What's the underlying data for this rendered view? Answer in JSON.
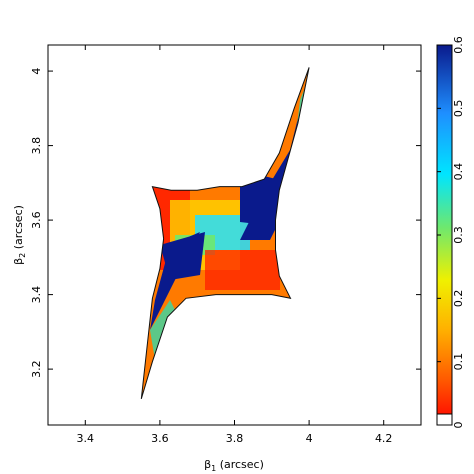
{
  "chart_data": {
    "type": "heatmap",
    "title": "",
    "xlabel": {
      "symbol": "β",
      "sub": "1",
      "unit": " (arcsec)"
    },
    "ylabel": {
      "symbol": "β",
      "sub": "2",
      "unit": " (arcsec)"
    },
    "xlim": [
      3.3,
      4.3
    ],
    "ylim": [
      3.05,
      4.07
    ],
    "xticks": [
      3.4,
      3.6,
      3.8,
      4.0,
      4.2
    ],
    "xtick_labels": [
      "3.4",
      "3.6",
      "3.8",
      "4",
      "4.2"
    ],
    "yticks": [
      3.2,
      3.4,
      3.6,
      3.8,
      4.0
    ],
    "ytick_labels": [
      "3.2",
      "3.4",
      "3.6",
      "3.8",
      "4"
    ],
    "grid": false,
    "colorbar": {
      "range": [
        0,
        0.6
      ],
      "ticks": [
        0,
        0.1,
        0.2,
        0.3,
        0.4,
        0.5,
        0.6
      ],
      "tick_labels": [
        "0",
        "0.1",
        "0.2",
        "0.3",
        "0.4",
        "0.5",
        "0.6"
      ],
      "colors": [
        "#ff0000",
        "#ff8c00",
        "#ffff00",
        "#6ee86e",
        "#00e5ff",
        "#1e8fff",
        "#0a1a8c"
      ]
    },
    "caustic_outline": [
      [
        4.0,
        4.01
      ],
      [
        3.96,
        3.9
      ],
      [
        3.92,
        3.78
      ],
      [
        3.88,
        3.71
      ],
      [
        3.82,
        3.69
      ],
      [
        3.76,
        3.69
      ],
      [
        3.7,
        3.68
      ],
      [
        3.63,
        3.68
      ],
      [
        3.58,
        3.69
      ],
      [
        3.6,
        3.63
      ],
      [
        3.61,
        3.55
      ],
      [
        3.6,
        3.47
      ],
      [
        3.58,
        3.39
      ],
      [
        3.55,
        3.12
      ],
      [
        3.58,
        3.22
      ],
      [
        3.62,
        3.34
      ],
      [
        3.67,
        3.39
      ],
      [
        3.75,
        3.4
      ],
      [
        3.83,
        3.4
      ],
      [
        3.9,
        3.4
      ],
      [
        3.95,
        3.39
      ],
      [
        3.92,
        3.45
      ],
      [
        3.91,
        3.52
      ],
      [
        3.91,
        3.6
      ],
      [
        3.92,
        3.68
      ],
      [
        3.97,
        3.86
      ]
    ]
  }
}
